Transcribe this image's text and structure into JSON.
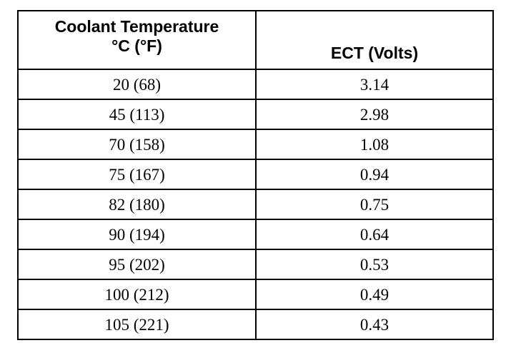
{
  "table": {
    "headers": {
      "temp_line1": "Coolant Temperature",
      "temp_line2": "°C (°F)",
      "ect": "ECT (Volts)"
    },
    "rows": [
      {
        "temp": "20 (68)",
        "volts": "3.14"
      },
      {
        "temp": "45 (113)",
        "volts": "2.98"
      },
      {
        "temp": "70 (158)",
        "volts": "1.08"
      },
      {
        "temp": "75 (167)",
        "volts": "0.94"
      },
      {
        "temp": "82 (180)",
        "volts": "0.75"
      },
      {
        "temp": "90 (194)",
        "volts": "0.64"
      },
      {
        "temp": "95 (202)",
        "volts": "0.53"
      },
      {
        "temp": "100 (212)",
        "volts": "0.49"
      },
      {
        "temp": "105 (221)",
        "volts": "0.43"
      }
    ]
  }
}
